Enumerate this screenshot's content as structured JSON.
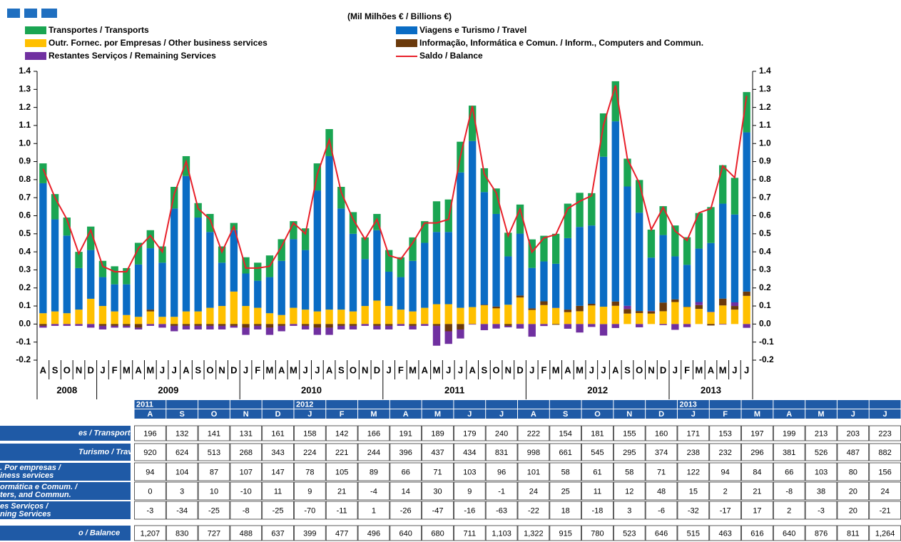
{
  "chart_data": {
    "type": "bar",
    "title": "(Mil Milhões € / Billions €)",
    "categories": [
      "A",
      "S",
      "O",
      "N",
      "D",
      "J",
      "F",
      "M",
      "A",
      "M",
      "J",
      "J",
      "A",
      "S",
      "O",
      "N",
      "D",
      "J",
      "F",
      "M",
      "A",
      "M",
      "J",
      "J",
      "A",
      "S",
      "O",
      "N",
      "D",
      "J",
      "F",
      "M",
      "A",
      "M",
      "J",
      "J",
      "A",
      "S",
      "O",
      "N",
      "D",
      "J",
      "F",
      "M",
      "A",
      "M",
      "J",
      "J",
      "A",
      "S",
      "O",
      "N",
      "D",
      "J",
      "F",
      "M",
      "A",
      "M",
      "J",
      "J"
    ],
    "years": [
      "2008",
      "2009",
      "2010",
      "2011",
      "2012",
      "2013"
    ],
    "ylim": [
      -0.2,
      1.4
    ],
    "yticks": [
      1.4,
      1.3,
      1.2,
      1.1,
      {
        "value": 1,
        "label": "1.0"
      },
      0.9,
      0.8,
      0.7,
      0.6,
      0.5,
      0.4,
      0.3,
      0.2,
      0.1,
      {
        "value": 0,
        "label": "0.0"
      },
      -0.1,
      -0.2
    ],
    "series": [
      {
        "name": "Transportes / Transports",
        "color": "#1aa552",
        "values": [
          0.11,
          0.14,
          0.1,
          0.09,
          0.13,
          0.09,
          0.1,
          0.09,
          0.12,
          0.1,
          0.09,
          0.12,
          0.11,
          0.08,
          0.1,
          0.09,
          0.04,
          0.09,
          0.1,
          0.12,
          0.12,
          0.1,
          0.12,
          0.15,
          0.15,
          0.12,
          0.12,
          0.12,
          0.09,
          0.12,
          0.11,
          0.13,
          0.12,
          0.17,
          0.18,
          0.17,
          0.196,
          0.132,
          0.141,
          0.131,
          0.161,
          0.158,
          0.142,
          0.166,
          0.191,
          0.189,
          0.179,
          0.24,
          0.222,
          0.154,
          0.181,
          0.155,
          0.16,
          0.171,
          0.153,
          0.197,
          0.199,
          0.213,
          0.203,
          0.223
        ]
      },
      {
        "name": "Viagens e Turismo / Travel",
        "color": "#0a6cc4",
        "values": [
          0.72,
          0.51,
          0.43,
          0.23,
          0.27,
          0.16,
          0.15,
          0.17,
          0.29,
          0.34,
          0.3,
          0.6,
          0.75,
          0.52,
          0.42,
          0.24,
          0.34,
          0.18,
          0.15,
          0.2,
          0.3,
          0.38,
          0.33,
          0.67,
          0.85,
          0.56,
          0.43,
          0.26,
          0.39,
          0.19,
          0.18,
          0.28,
          0.36,
          0.4,
          0.4,
          0.75,
          0.92,
          0.624,
          0.513,
          0.268,
          0.343,
          0.224,
          0.221,
          0.244,
          0.396,
          0.437,
          0.434,
          0.831,
          0.998,
          0.661,
          0.545,
          0.295,
          0.374,
          0.238,
          0.232,
          0.296,
          0.381,
          0.526,
          0.487,
          0.882
        ]
      },
      {
        "name": "Outr. Fornec. por Empresas  / Other business services",
        "color": "#ffc000",
        "values": [
          0.06,
          0.07,
          0.06,
          0.08,
          0.14,
          0.1,
          0.07,
          0.05,
          0.04,
          0.07,
          0.04,
          0.04,
          0.07,
          0.07,
          0.09,
          0.1,
          0.18,
          0.1,
          0.09,
          0.06,
          0.05,
          0.09,
          0.08,
          0.07,
          0.08,
          0.08,
          0.07,
          0.1,
          0.13,
          0.1,
          0.08,
          0.07,
          0.09,
          0.11,
          0.11,
          0.09,
          0.094,
          0.104,
          0.087,
          0.107,
          0.147,
          0.078,
          0.105,
          0.089,
          0.066,
          0.071,
          0.103,
          0.096,
          0.101,
          0.058,
          0.061,
          0.058,
          0.071,
          0.122,
          0.094,
          0.084,
          0.066,
          0.103,
          0.08,
          0.156
        ]
      },
      {
        "name": "Informação, Informática e Comun. / Inform., Computers and Commun.",
        "color": "#6b3a0c",
        "values": [
          -0.01,
          0,
          0,
          0,
          0,
          -0.01,
          -0.01,
          -0.01,
          -0.02,
          0.01,
          0,
          -0.01,
          -0.01,
          -0.01,
          -0.01,
          -0.01,
          -0.01,
          -0.02,
          -0.01,
          -0.02,
          -0.01,
          0,
          -0.01,
          -0.02,
          -0.02,
          -0.01,
          -0.01,
          0,
          -0.01,
          -0.01,
          0,
          -0.01,
          0,
          -0.01,
          -0.04,
          -0.03,
          0,
          0.003,
          0.01,
          -0.01,
          0.011,
          0.009,
          0.021,
          -0.004,
          0.014,
          0.03,
          0.009,
          -0.001,
          0.024,
          0.025,
          0.011,
          0.012,
          0.048,
          0.015,
          0.002,
          0.021,
          -0.008,
          0.038,
          0.02,
          0.024
        ]
      },
      {
        "name": "Restantes Serviços / Remaining Services",
        "color": "#7030a0",
        "values": [
          -0.01,
          -0.01,
          -0.01,
          -0.01,
          -0.02,
          -0.02,
          -0.01,
          -0.01,
          -0.01,
          -0.01,
          -0.02,
          -0.03,
          -0.02,
          -0.02,
          -0.02,
          -0.02,
          -0.01,
          -0.04,
          -0.02,
          -0.04,
          -0.03,
          -0.01,
          -0.02,
          -0.04,
          -0.04,
          -0.02,
          -0.02,
          -0.01,
          -0.02,
          -0.02,
          -0.01,
          -0.02,
          -0.01,
          -0.11,
          -0.07,
          -0.05,
          -0.003,
          -0.034,
          -0.025,
          -0.008,
          -0.025,
          -0.07,
          -0.011,
          0.001,
          -0.026,
          -0.047,
          -0.016,
          -0.063,
          -0.022,
          0.018,
          -0.018,
          0.003,
          -0.006,
          -0.032,
          -0.017,
          0.017,
          0.002,
          -0.003,
          0.02,
          -0.021
        ]
      },
      {
        "name": "Saldo / Balance",
        "color": "#e8202a",
        "type": "line",
        "values": [
          0.86,
          0.7,
          0.58,
          0.39,
          0.52,
          0.32,
          0.29,
          0.29,
          0.42,
          0.49,
          0.4,
          0.72,
          0.9,
          0.64,
          0.58,
          0.4,
          0.54,
          0.31,
          0.31,
          0.32,
          0.43,
          0.56,
          0.5,
          0.83,
          1.02,
          0.73,
          0.58,
          0.47,
          0.58,
          0.38,
          0.36,
          0.45,
          0.56,
          0.56,
          0.58,
          0.93,
          1.207,
          0.83,
          0.727,
          0.488,
          0.637,
          0.399,
          0.477,
          0.496,
          0.64,
          0.68,
          0.711,
          1.103,
          1.322,
          0.915,
          0.78,
          0.523,
          0.646,
          0.515,
          0.463,
          0.616,
          0.64,
          0.876,
          0.811,
          1.264
        ]
      }
    ]
  },
  "table": {
    "years": [
      "2011",
      null,
      null,
      null,
      null,
      "2012",
      null,
      null,
      null,
      null,
      null,
      null,
      null,
      null,
      null,
      null,
      null,
      "2013",
      null,
      null,
      null,
      null,
      null,
      null
    ],
    "months": [
      "A",
      "S",
      "O",
      "N",
      "D",
      "J",
      "F",
      "M",
      "A",
      "M",
      "J",
      "J",
      "A",
      "S",
      "O",
      "N",
      "D",
      "J",
      "F",
      "M",
      "A",
      "M",
      "J",
      "J"
    ],
    "rows": [
      {
        "label": [
          "es / Transports"
        ],
        "values": [
          196,
          132,
          141,
          131,
          161,
          158,
          142,
          166,
          191,
          189,
          179,
          240,
          222,
          154,
          181,
          155,
          160,
          171,
          153,
          197,
          199,
          213,
          203,
          223
        ]
      },
      {
        "label": [
          "Turismo / Travel"
        ],
        "values": [
          920,
          624,
          513,
          268,
          343,
          224,
          221,
          244,
          396,
          437,
          434,
          831,
          998,
          661,
          545,
          295,
          374,
          238,
          232,
          296,
          381,
          526,
          487,
          882
        ]
      },
      {
        "label": [
          ". Por empresas /",
          "iness services"
        ],
        "values": [
          94,
          104,
          87,
          107,
          147,
          78,
          105,
          89,
          66,
          71,
          103,
          96,
          101,
          58,
          61,
          58,
          71,
          122,
          94,
          84,
          66,
          103,
          80,
          156
        ]
      },
      {
        "label": [
          "ormática e Comum. /",
          "ters, and Commun."
        ],
        "values": [
          0,
          3,
          10,
          -10,
          11,
          9,
          21,
          -4,
          14,
          30,
          9,
          -1,
          24,
          25,
          11,
          12,
          48,
          15,
          2,
          21,
          -8,
          38,
          20,
          24
        ]
      },
      {
        "label": [
          "es Serviços /",
          "ning Services"
        ],
        "values": [
          -3,
          -34,
          -25,
          -8,
          -25,
          -70,
          -11,
          1,
          -26,
          -47,
          -16,
          -63,
          -22,
          18,
          -18,
          3,
          -6,
          -32,
          -17,
          17,
          2,
          -3,
          20,
          -21
        ]
      },
      {
        "label": [
          "o / Balance"
        ],
        "values": [
          "1,207",
          830,
          727,
          488,
          637,
          399,
          477,
          496,
          640,
          680,
          711,
          "1,103",
          "1,322",
          915,
          780,
          523,
          646,
          515,
          463,
          616,
          640,
          876,
          811,
          "1,264"
        ]
      }
    ]
  }
}
